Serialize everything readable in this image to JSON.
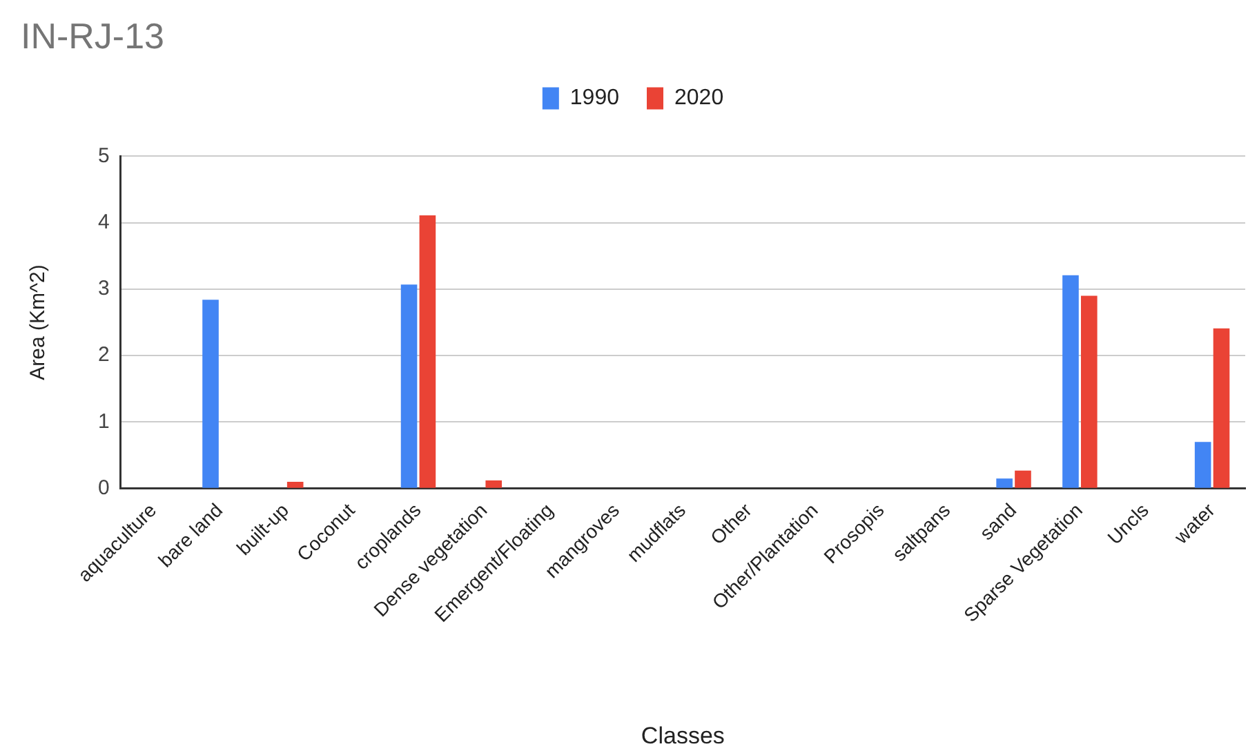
{
  "chart_data": {
    "type": "bar",
    "title": "IN-RJ-13",
    "xlabel": "Classes",
    "ylabel": "Area (Km^2)",
    "categories": [
      "aquaculture",
      "bare land",
      "built-up",
      "Coconut",
      "croplands",
      "Dense vegetation",
      "Emergent/Floating",
      "mangroves",
      "mudflats",
      "Other",
      "Other/Plantation",
      "Prosopis",
      "saltpans",
      "sand",
      "Sparse Vegetation",
      "Uncls",
      "water"
    ],
    "series": [
      {
        "name": "1990",
        "color": "#4285f4",
        "values": [
          0,
          2.84,
          0,
          0,
          3.07,
          0,
          0,
          0,
          0,
          0,
          0,
          0,
          0,
          0.15,
          3.21,
          0,
          0.7
        ]
      },
      {
        "name": "2020",
        "color": "#ea4335",
        "values": [
          0,
          0,
          0.1,
          0,
          4.11,
          0.12,
          0,
          0,
          0,
          0,
          0,
          0,
          0,
          0.27,
          2.9,
          0,
          2.41
        ]
      }
    ],
    "ylim": [
      0,
      5
    ],
    "yticks": [
      0,
      1,
      2,
      3,
      4,
      5
    ],
    "grid": "y",
    "legend": "top"
  }
}
